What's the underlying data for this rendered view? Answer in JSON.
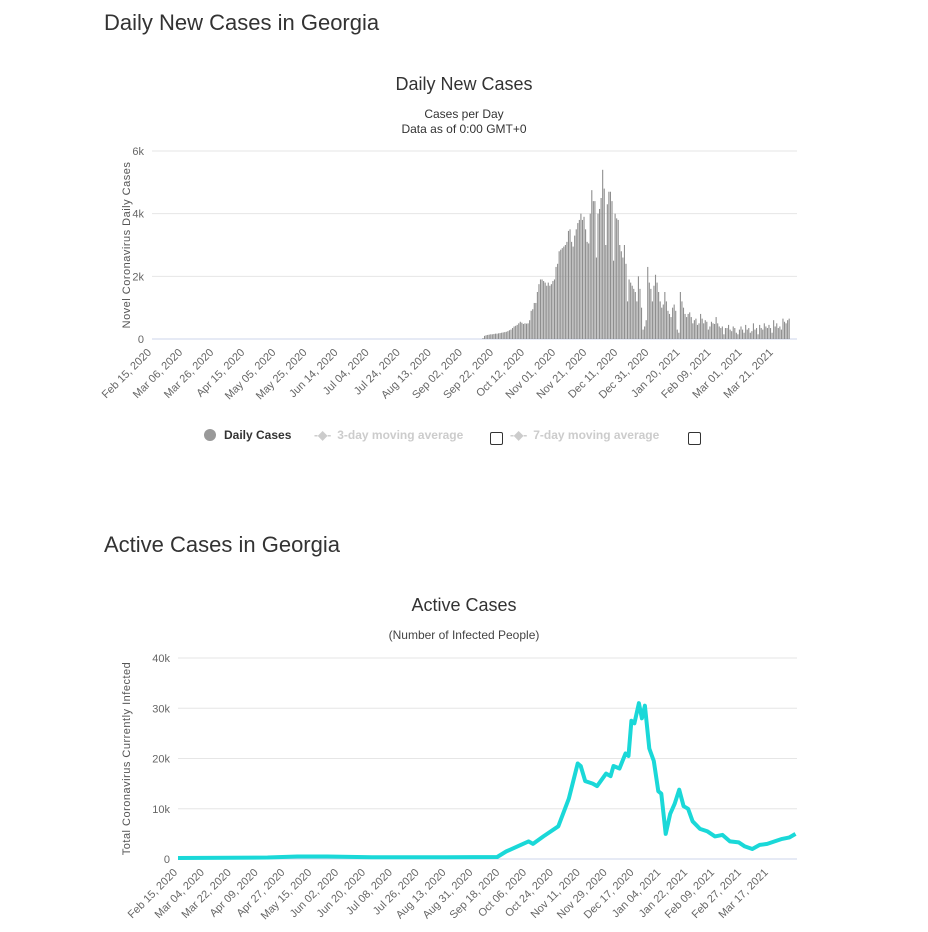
{
  "section1": {
    "heading": "Daily New Cases in Georgia"
  },
  "section2": {
    "heading": "Active Cases in Georgia"
  },
  "chart_data": [
    {
      "type": "bar",
      "title": "Daily New Cases",
      "subtitle1": "Cases per Day",
      "subtitle2": "Data as of 0:00 GMT+0",
      "ylabel": "Novel Coronavirus Daily Cases",
      "ylim": [
        0,
        6000
      ],
      "yticks": [
        "0",
        "2k",
        "4k",
        "6k"
      ],
      "ytick_values": [
        0,
        2000,
        4000,
        6000
      ],
      "x_start": "Feb 15, 2020",
      "x_range_days": [
        0,
        415
      ],
      "tick_interval_days": 20,
      "xticks": [
        "Feb 15, 2020",
        "Mar 06, 2020",
        "Mar 26, 2020",
        "Apr 15, 2020",
        "May 05, 2020",
        "May 25, 2020",
        "Jun 14, 2020",
        "Jul 04, 2020",
        "Jul 24, 2020",
        "Aug 13, 2020",
        "Sep 02, 2020",
        "Sep 22, 2020",
        "Oct 12, 2020",
        "Nov 01, 2020",
        "Nov 21, 2020",
        "Dec 11, 2020",
        "Dec 31, 2020",
        "Jan 20, 2021",
        "Feb 09, 2021",
        "Mar 01, 2021",
        "Mar 21, 2021"
      ],
      "values_start_day": 213,
      "values": [
        30,
        100,
        120,
        130,
        140,
        150,
        150,
        160,
        170,
        170,
        180,
        190,
        200,
        210,
        220,
        230,
        250,
        280,
        300,
        350,
        400,
        420,
        450,
        500,
        550,
        520,
        480,
        500,
        490,
        500,
        600,
        900,
        950,
        1150,
        1150,
        1500,
        1750,
        1900,
        1900,
        1850,
        1800,
        1700,
        1800,
        1700,
        1750,
        1850,
        1900,
        2300,
        2400,
        2800,
        2850,
        2900,
        2950,
        3000,
        3100,
        3450,
        3500,
        3100,
        2950,
        3300,
        3500,
        3700,
        3800,
        4000,
        3800,
        3900,
        3500,
        3100,
        3050,
        4000,
        4750,
        4400,
        4400,
        2600,
        4000,
        4150,
        4500,
        5400,
        4800,
        3000,
        4300,
        4700,
        4700,
        4400,
        2500,
        4000,
        3850,
        3800,
        3000,
        2800,
        2600,
        3000,
        2400,
        1200,
        1900,
        1800,
        1700,
        1600,
        1500,
        1200,
        2000,
        1600,
        1000,
        300,
        400,
        600,
        2300,
        1800,
        1600,
        1200,
        1700,
        2050,
        1800,
        1500,
        1200,
        1000,
        1100,
        1500,
        1200,
        900,
        800,
        700,
        1000,
        1100,
        900,
        300,
        200,
        1500,
        1200,
        1000,
        800,
        700,
        800,
        850,
        700,
        500,
        600,
        650,
        450,
        500,
        800,
        650,
        500,
        600,
        550,
        300,
        400,
        550,
        500,
        480,
        700,
        500,
        400,
        350,
        400,
        150,
        350,
        350,
        450,
        300,
        250,
        400,
        350,
        200,
        150,
        300,
        400,
        300,
        200,
        450,
        300,
        350,
        200,
        250,
        500,
        300,
        350,
        150,
        450,
        350,
        300,
        500,
        400,
        350,
        450,
        350,
        200,
        600,
        400,
        500,
        350,
        400,
        300,
        650,
        550,
        500,
        600,
        650
      ],
      "legend": [
        {
          "label": "Daily Cases",
          "active": true
        },
        {
          "label": "3-day moving average",
          "active": false
        },
        {
          "label": "7-day moving average",
          "active": false
        }
      ],
      "color": "#999999"
    },
    {
      "type": "line",
      "title": "Active Cases",
      "subtitle1": "(Number of Infected People)",
      "ylabel": "Total Coronavirus Currently Infected",
      "ylim": [
        0,
        40000
      ],
      "yticks": [
        "0",
        "10k",
        "20k",
        "30k",
        "40k"
      ],
      "ytick_values": [
        0,
        10000,
        20000,
        30000,
        40000
      ],
      "x_start": "Feb 15, 2020",
      "x_range_days": [
        0,
        415
      ],
      "tick_interval_days": 18,
      "xticks": [
        "Feb 15, 2020",
        "Mar 04, 2020",
        "Mar 22, 2020",
        "Apr 09, 2020",
        "Apr 27, 2020",
        "May 15, 2020",
        "Jun 02, 2020",
        "Jun 20, 2020",
        "Jul 08, 2020",
        "Jul 26, 2020",
        "Aug 13, 2020",
        "Aug 31, 2020",
        "Sep 18, 2020",
        "Oct 06, 2020",
        "Oct 24, 2020",
        "Nov 11, 2020",
        "Nov 29, 2020",
        "Dec 17, 2020",
        "Jan 04, 2021",
        "Jan 22, 2021",
        "Feb 09, 2021",
        "Feb 27, 2021",
        "Mar 17, 2021"
      ],
      "points": [
        [
          0,
          200
        ],
        [
          60,
          300
        ],
        [
          80,
          500
        ],
        [
          100,
          500
        ],
        [
          130,
          350
        ],
        [
          180,
          350
        ],
        [
          214,
          400
        ],
        [
          220,
          1500
        ],
        [
          235,
          3500
        ],
        [
          238,
          3000
        ],
        [
          245,
          4500
        ],
        [
          255,
          6500
        ],
        [
          262,
          12000
        ],
        [
          268,
          19000
        ],
        [
          270,
          18500
        ],
        [
          273,
          15500
        ],
        [
          278,
          15000
        ],
        [
          281,
          14500
        ],
        [
          287,
          17000
        ],
        [
          290,
          16500
        ],
        [
          292,
          18500
        ],
        [
          296,
          18000
        ],
        [
          300,
          21000
        ],
        [
          302,
          20500
        ],
        [
          304,
          27500
        ],
        [
          306,
          27000
        ],
        [
          309,
          31000
        ],
        [
          311,
          28000
        ],
        [
          313,
          30500
        ],
        [
          316,
          22000
        ],
        [
          319,
          19500
        ],
        [
          322,
          13500
        ],
        [
          324,
          13000
        ],
        [
          327,
          5000
        ],
        [
          330,
          9000
        ],
        [
          333,
          11000
        ],
        [
          336,
          13800
        ],
        [
          339,
          10500
        ],
        [
          342,
          10000
        ],
        [
          345,
          7500
        ],
        [
          350,
          6000
        ],
        [
          355,
          5500
        ],
        [
          360,
          4500
        ],
        [
          365,
          4800
        ],
        [
          370,
          3500
        ],
        [
          376,
          3300
        ],
        [
          380,
          2500
        ],
        [
          385,
          2000
        ],
        [
          390,
          2800
        ],
        [
          395,
          3000
        ],
        [
          400,
          3500
        ],
        [
          405,
          4000
        ],
        [
          410,
          4300
        ],
        [
          414,
          5000
        ]
      ],
      "color": "#1ad8d8"
    }
  ]
}
